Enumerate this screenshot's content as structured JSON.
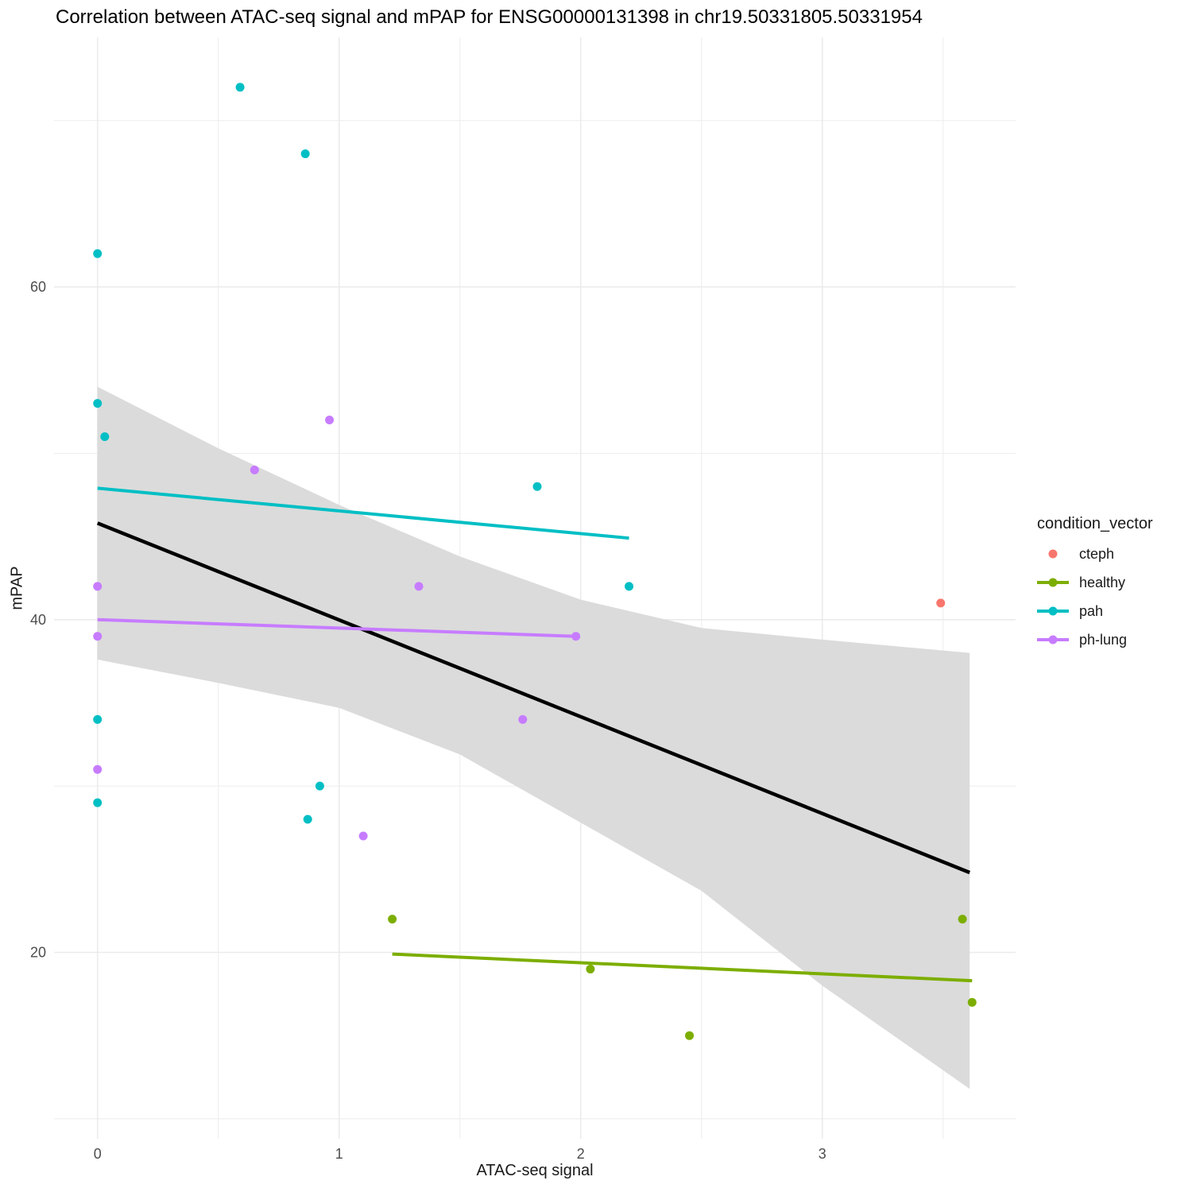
{
  "chart_data": {
    "type": "scatter",
    "title": "Correlation between ATAC-seq signal and mPAP for ENSG00000131398 in chr19.50331805.50331954",
    "xlabel": "ATAC-seq signal",
    "ylabel": "mPAP",
    "xlim": [
      -0.18,
      3.8
    ],
    "ylim": [
      8.8,
      75
    ],
    "x_major_ticks": [
      0,
      1,
      2,
      3
    ],
    "x_minor_ticks": [
      0.5,
      1.5,
      2.5,
      3.5
    ],
    "y_major_ticks": [
      20,
      40,
      60
    ],
    "y_minor_ticks": [
      10,
      30,
      50,
      70
    ],
    "grid": true,
    "grid_color": "#ebebeb",
    "tick_label_color": "#4d4d4d",
    "legend": {
      "title": "condition_vector",
      "position": "right",
      "entries": [
        {
          "label": "cteph",
          "color": "#F8766D",
          "has_line": false
        },
        {
          "label": "healthy",
          "color": "#7CAE00",
          "has_line": true
        },
        {
          "label": "pah",
          "color": "#00BFC4",
          "has_line": true
        },
        {
          "label": "ph-lung",
          "color": "#C77CFF",
          "has_line": true
        }
      ]
    },
    "series": [
      {
        "name": "cteph",
        "color": "#F8766D",
        "points": [
          [
            3.49,
            41
          ]
        ]
      },
      {
        "name": "healthy",
        "color": "#7CAE00",
        "points": [
          [
            1.22,
            22
          ],
          [
            2.04,
            19
          ],
          [
            2.45,
            15
          ],
          [
            3.58,
            22
          ],
          [
            3.62,
            17
          ]
        ]
      },
      {
        "name": "pah",
        "color": "#00BFC4",
        "points": [
          [
            0,
            62
          ],
          [
            0,
            53
          ],
          [
            0.03,
            51
          ],
          [
            0,
            34
          ],
          [
            0,
            29
          ],
          [
            0.59,
            72
          ],
          [
            0.86,
            68
          ],
          [
            0.87,
            28
          ],
          [
            0.92,
            30
          ],
          [
            1.82,
            48
          ],
          [
            2.2,
            42
          ]
        ]
      },
      {
        "name": "ph-lung",
        "color": "#C77CFF",
        "points": [
          [
            0,
            42
          ],
          [
            0,
            39
          ],
          [
            0,
            31
          ],
          [
            0.65,
            49
          ],
          [
            0.96,
            52
          ],
          [
            1.1,
            27
          ],
          [
            1.33,
            42
          ],
          [
            1.76,
            34
          ],
          [
            1.98,
            39
          ]
        ]
      }
    ],
    "regression_lines": [
      {
        "name": "overall",
        "color": "#000000",
        "width": 4.5,
        "x1": 0,
        "y1": 45.8,
        "x2": 3.61,
        "y2": 24.8
      },
      {
        "name": "pah",
        "color": "#00BFC4",
        "width": 4,
        "x1": 0,
        "y1": 47.9,
        "x2": 2.2,
        "y2": 44.9
      },
      {
        "name": "ph-lung",
        "color": "#C77CFF",
        "width": 4,
        "x1": 0,
        "y1": 40.0,
        "x2": 1.98,
        "y2": 39.0
      },
      {
        "name": "healthy",
        "color": "#7CAE00",
        "width": 4,
        "x1": 1.22,
        "y1": 19.9,
        "x2": 3.62,
        "y2": 18.3
      }
    ],
    "confidence_band": {
      "fill": "#dbdbdb",
      "points": [
        {
          "x": 0,
          "top": 54.0,
          "bottom": 37.6
        },
        {
          "x": 0.5,
          "top": 50.3,
          "bottom": 36.2
        },
        {
          "x": 1,
          "top": 46.9,
          "bottom": 34.7
        },
        {
          "x": 1.5,
          "top": 43.8,
          "bottom": 31.9
        },
        {
          "x": 2,
          "top": 41.2,
          "bottom": 27.8
        },
        {
          "x": 2.5,
          "top": 39.5,
          "bottom": 23.7
        },
        {
          "x": 3,
          "top": 38.8,
          "bottom": 18.0
        },
        {
          "x": 3.61,
          "top": 38.0,
          "bottom": 11.8
        }
      ]
    }
  }
}
